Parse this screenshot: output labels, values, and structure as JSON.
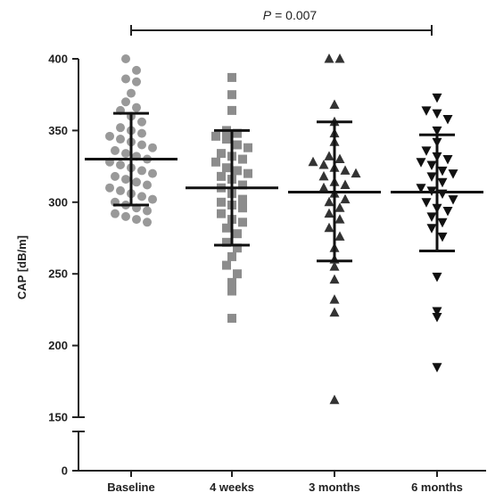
{
  "chart_data": {
    "type": "scatter",
    "ylabel": "CAP [dB/m]",
    "xlabel": "",
    "title": "",
    "categories": [
      "Baseline",
      "4 weeks",
      "3 months",
      "6 months"
    ],
    "y_axis_break": true,
    "yticks_upper": [
      150,
      200,
      250,
      300,
      350,
      400
    ],
    "yticks_lower": [
      0
    ],
    "ylim_upper": [
      150,
      400
    ],
    "significance": {
      "from": "Baseline",
      "to": "6 months",
      "p_prefix": "P",
      "p_value": "= 0.007"
    },
    "series": [
      {
        "category": "Baseline",
        "marker": "circle",
        "color": "#999999",
        "mean": 330,
        "sd_upper": 362,
        "sd_lower": 298,
        "points": [
          400,
          392,
          386,
          384,
          376,
          370,
          366,
          364,
          360,
          356,
          352,
          350,
          348,
          346,
          344,
          342,
          340,
          338,
          336,
          334,
          332,
          330,
          328,
          326,
          324,
          322,
          320,
          318,
          316,
          314,
          312,
          310,
          308,
          306,
          304,
          302,
          300,
          298,
          296,
          294,
          292,
          290,
          288,
          286
        ]
      },
      {
        "category": "4 weeks",
        "marker": "square",
        "color": "#8c8c8c",
        "mean": 310,
        "sd_upper": 350,
        "sd_lower": 270,
        "points": [
          387,
          375,
          364,
          350,
          348,
          346,
          344,
          340,
          338,
          334,
          332,
          330,
          328,
          324,
          322,
          320,
          318,
          316,
          312,
          310,
          306,
          302,
          300,
          298,
          296,
          292,
          288,
          286,
          282,
          278,
          272,
          268,
          262,
          256,
          250,
          244,
          238,
          219
        ]
      },
      {
        "category": "3 months",
        "marker": "triangle-up",
        "color": "#333333",
        "mean": 307,
        "sd_upper": 356,
        "sd_lower": 259,
        "points": [
          400,
          400,
          368,
          356,
          348,
          342,
          332,
          330,
          328,
          326,
          324,
          322,
          320,
          318,
          314,
          312,
          310,
          306,
          302,
          300,
          296,
          292,
          288,
          282,
          276,
          268,
          260,
          255,
          246,
          232,
          223,
          162
        ]
      },
      {
        "category": "6 months",
        "marker": "triangle-down",
        "color": "#111111",
        "mean": 307,
        "sd_upper": 347,
        "sd_lower": 266,
        "points": [
          373,
          364,
          362,
          358,
          350,
          342,
          336,
          332,
          330,
          328,
          326,
          322,
          320,
          318,
          314,
          310,
          308,
          306,
          302,
          300,
          296,
          294,
          290,
          286,
          282,
          276,
          248,
          224,
          220,
          185
        ]
      }
    ]
  }
}
